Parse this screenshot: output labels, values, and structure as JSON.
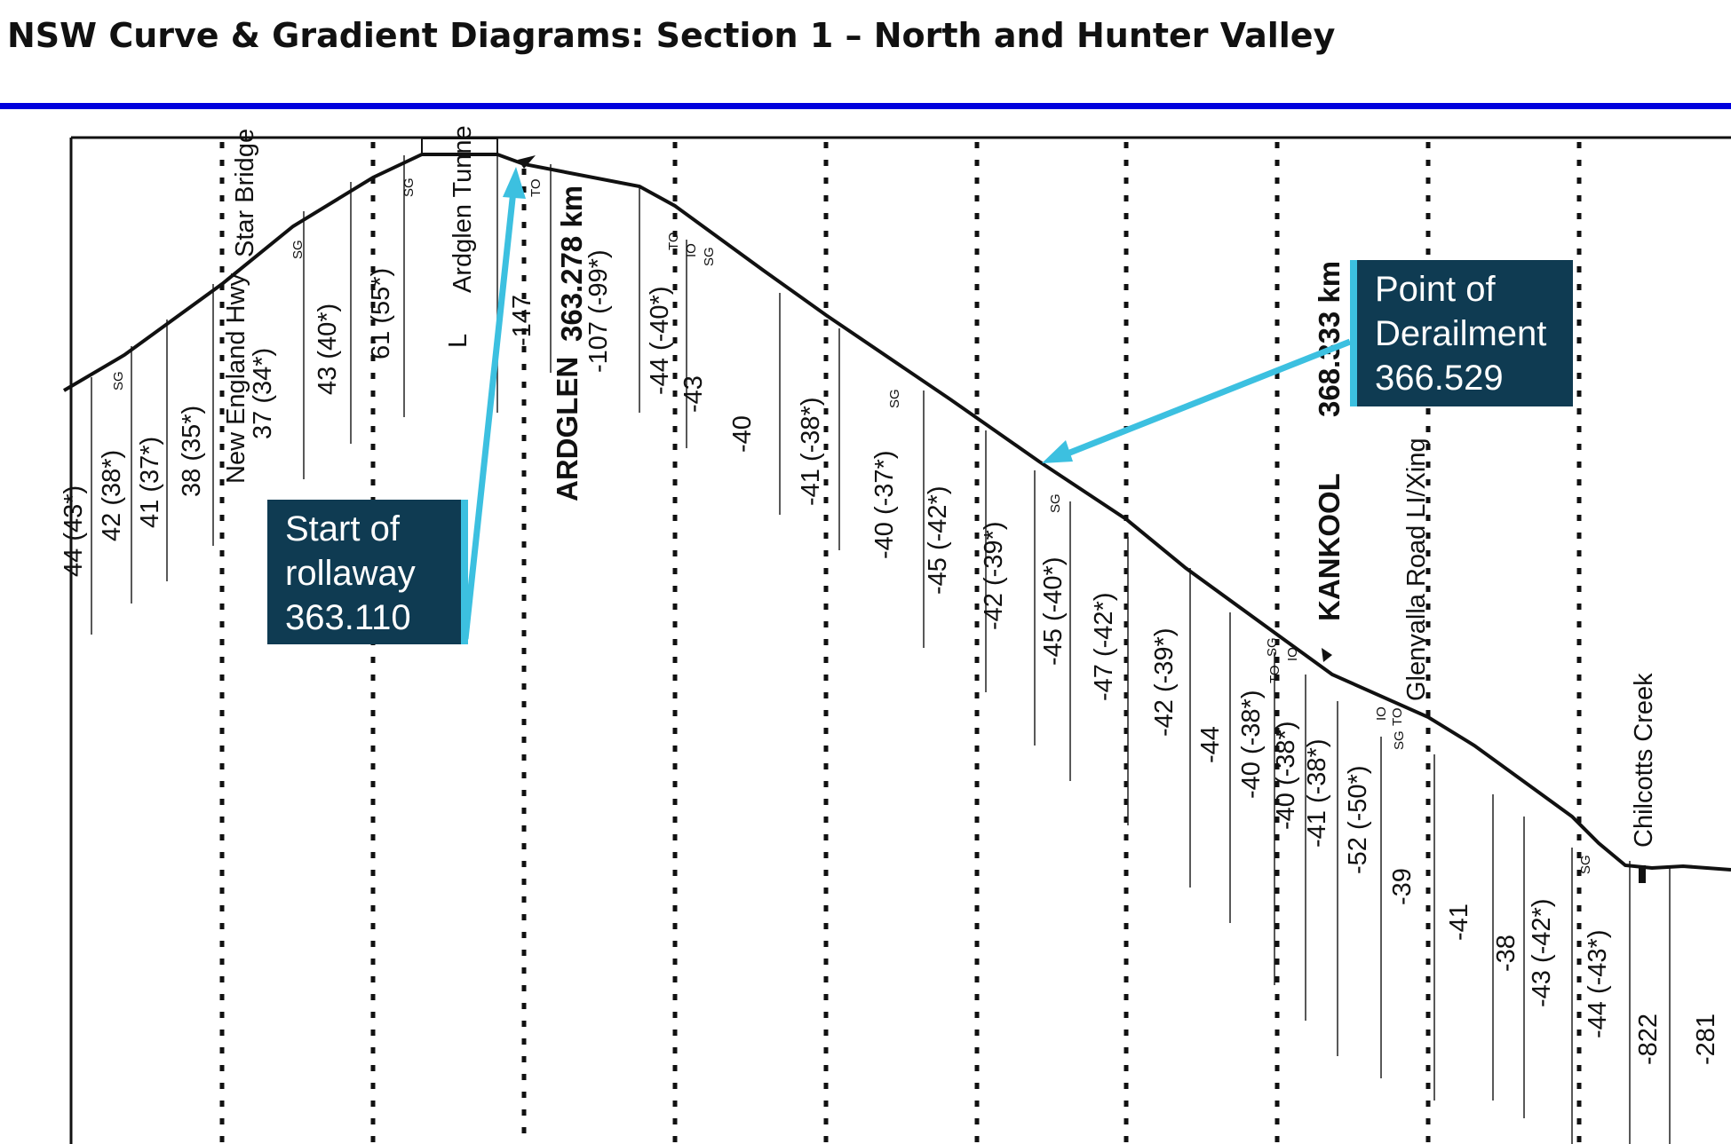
{
  "title": "NSW Curve & Gradient Diagrams: Section 1 – North and Hunter Valley",
  "colors": {
    "rule": "#0000dd",
    "callout_bg": "#0f3b52",
    "accent": "#3cc0e0",
    "ink": "#111111"
  },
  "callouts": {
    "start": {
      "line1": "Start of",
      "line2": "rollaway",
      "line3": "363.110"
    },
    "derailment": {
      "line1": "Point of",
      "line2": "Derailment",
      "line3": "366.529"
    }
  },
  "places": {
    "new_england": "New England Hwy",
    "star_bridge": "Star Bridge",
    "ardglen_tunnel": "Ardglen Tunne",
    "ardglen": "ARDGLEN",
    "ardglen_km": "363.278 km",
    "kankool": "KANKOOL",
    "kankool_km": "368.333 km",
    "glenyalla": "Glenyalla Road LI/Xing",
    "chilcotts": "Chilcotts Creek",
    "tunnel_l": "L"
  },
  "gradients": [
    "44 (43*)",
    "42 (38*)",
    "41 (37*)",
    "38 (35*)",
    "37 (34*)",
    "43 (40*)",
    "61 (55*)",
    "-147",
    "-107 (-99*)",
    "-44 (-40*)",
    "-43",
    "-40",
    "-41 (-38*)",
    "-40 (-37*)",
    "-45 (-42*)",
    "-42 (-39*)",
    "-45 (-40*)",
    "-47 (-42*)",
    "-42 (-39*)",
    "-44",
    "-40 (-38*)",
    "-40 (-38*)",
    "-41 (-38*)",
    "-52 (-50*)",
    "-39",
    "-41",
    "-38",
    "-43 (-42*)",
    "-44 (-43*)",
    "-822",
    "-281"
  ],
  "marks": {
    "sg": "SG",
    "to": "TO",
    "io": "IO"
  }
}
